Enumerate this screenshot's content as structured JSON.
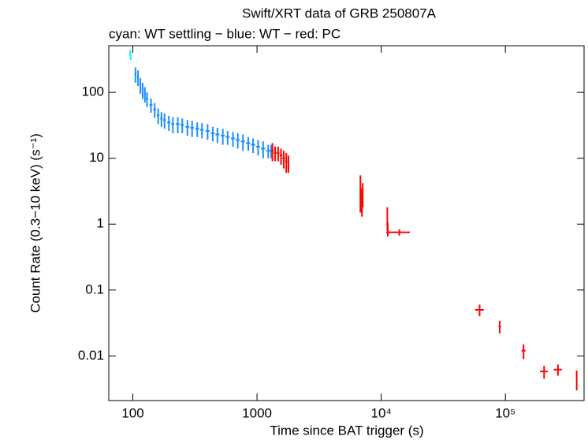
{
  "chart_data": {
    "type": "errorbar",
    "title": "Swift/XRT data of GRB 250807A",
    "subtitle": "cyan: WT settling − blue: WT − red: PC",
    "x_label": "Time since BAT trigger (s)",
    "y_label": "Count Rate (0.3−10 keV) (s⁻¹)",
    "xscale": "log",
    "yscale": "log",
    "xlim": [
      64,
      430000
    ],
    "ylim": [
      0.0021,
      510
    ],
    "xticks": [
      100,
      1000,
      {
        "value": 10000,
        "label": "10⁴"
      },
      {
        "value": 100000,
        "label": "10⁵"
      }
    ],
    "yticks": [
      0.01,
      0.1,
      1,
      10,
      100
    ],
    "series": [
      {
        "color": "#00ffff",
        "x": [
          95,
          96
        ],
        "values": [
          400,
          340
        ],
        "xerr": [
          0.5,
          0.5
        ],
        "yerr": [
          40,
          30
        ]
      },
      {
        "color": "#1e8fff",
        "x": [
          105,
          110,
          115,
          120,
          125,
          130,
          140,
          150,
          160,
          170,
          180,
          195,
          210,
          230,
          250,
          275,
          300,
          330,
          360,
          400,
          440,
          480,
          530,
          580,
          640,
          700,
          770,
          850,
          930,
          1020,
          1120,
          1230,
          1300
        ],
        "values": [
          190,
          170,
          130,
          110,
          95,
          80,
          65,
          55,
          45,
          40,
          38,
          35,
          33,
          33,
          32,
          30,
          29,
          28,
          27,
          26,
          24,
          23,
          22,
          21,
          20,
          19,
          18,
          17,
          16,
          15,
          14,
          13,
          13
        ],
        "xerr": [
          2,
          2,
          2,
          2,
          2,
          3,
          4,
          4,
          4,
          4,
          5,
          6,
          6,
          8,
          8,
          10,
          10,
          12,
          12,
          15,
          15,
          18,
          20,
          20,
          25,
          25,
          30,
          35,
          35,
          40,
          45,
          45,
          30
        ],
        "yerr": [
          50,
          45,
          35,
          30,
          25,
          20,
          16,
          14,
          12,
          10,
          10,
          9,
          9,
          9,
          8,
          8,
          8,
          7,
          7,
          7,
          6,
          6,
          6,
          5,
          5,
          5,
          5,
          4,
          4,
          4,
          4,
          3,
          3
        ]
      },
      {
        "color": "#ff0000",
        "x": [
          1330,
          1400,
          1480,
          1560,
          1640,
          1720,
          1790,
          6800,
          6900,
          7000,
          7100,
          11200,
          11300,
          14000,
          62000,
          90000,
          140000,
          205000,
          265000,
          375000
        ],
        "values": [
          13,
          12,
          12,
          11,
          10,
          9,
          8.5,
          3.5,
          2.5,
          2.0,
          3.0,
          1.3,
          0.85,
          0.75,
          0.05,
          0.028,
          0.012,
          0.0058,
          0.0062,
          0.0045
        ],
        "xerr": [
          30,
          35,
          35,
          40,
          40,
          35,
          30,
          40,
          40,
          40,
          40,
          100,
          100,
          3000,
          5000,
          2000,
          5000,
          15000,
          20000,
          3000
        ],
        "yerr": [
          4,
          3,
          3,
          3,
          3,
          3,
          2.5,
          2,
          1,
          0.7,
          1.2,
          0.5,
          0.2,
          0.08,
          0.01,
          0.006,
          0.003,
          0.0013,
          0.0012,
          0.0015
        ]
      }
    ]
  }
}
